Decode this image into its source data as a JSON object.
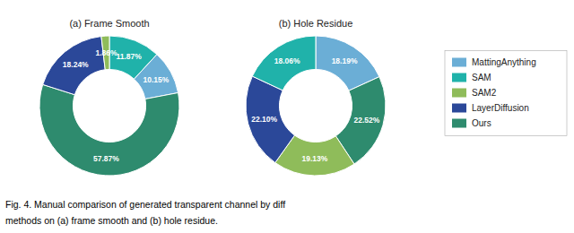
{
  "chart_data": [
    {
      "type": "pie",
      "title": "(a) Frame Smooth",
      "categories": [
        "SAM",
        "MattingAnything",
        "Ours",
        "LayerDiffusion",
        "SAM2"
      ],
      "values": [
        11.87,
        10.15,
        57.87,
        18.24,
        1.86
      ],
      "value_labels": [
        "11.87%",
        "10.15%",
        "57.87%",
        "18.24%",
        "1.86%"
      ],
      "colors": [
        "#20b2aa",
        "#6baed6",
        "#2e8b6e",
        "#2b4899",
        "#8fbc5a"
      ],
      "data_labels": true
    },
    {
      "type": "pie",
      "title": "(b) Hole Residue",
      "categories": [
        "MattingAnything",
        "Ours",
        "SAM2",
        "LayerDiffusion",
        "SAM"
      ],
      "values": [
        18.19,
        22.52,
        19.13,
        22.1,
        18.06
      ],
      "value_labels": [
        "18.19%",
        "22.52%",
        "19.13%",
        "22.10%",
        "18.06%"
      ],
      "colors": [
        "#6baed6",
        "#2e8b6e",
        "#8fbc5a",
        "#2b4899",
        "#20b2aa"
      ],
      "data_labels": true
    }
  ],
  "series": [
    {
      "name": "MattingAnything",
      "color": "#6baed6"
    },
    {
      "name": "SAM",
      "color": "#20b2aa"
    },
    {
      "name": "SAM2",
      "color": "#8fbc5a"
    },
    {
      "name": "LayerDiffusion",
      "color": "#2b4899"
    },
    {
      "name": "Ours",
      "color": "#2e8b6e"
    }
  ],
  "legend": "right",
  "caption": [
    "Fig. 4.   Manual comparison of generated transparent channel by diff",
    "methods on (a) frame smooth and (b) hole residue."
  ]
}
